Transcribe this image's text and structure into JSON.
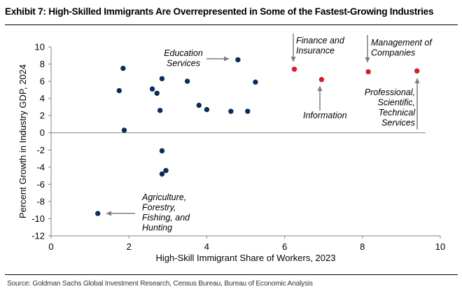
{
  "header": {
    "title": "Exhibit 7: High-Skilled Immigrants Are Overrepresented in Some of the Fastest-Growing Industries"
  },
  "footer": {
    "source": "Source: Goldman Sachs Global Investment Research, Census Bureau, Bureau of Economic Analysis"
  },
  "chart_data": {
    "type": "scatter",
    "title": "Exhibit 7: High-Skilled Immigrants Are Overrepresented in Some of the Fastest-Growing Industries",
    "xlabel": "High-Skill Immigrant Share of Workers, 2023",
    "ylabel": "Percent Growth in Industry GDP, 2024",
    "xlim": [
      0,
      10
    ],
    "ylim": [
      -12,
      10
    ],
    "xticks": [
      0,
      2,
      4,
      6,
      8,
      10
    ],
    "yticks": [
      -12,
      -10,
      -8,
      -6,
      -4,
      -2,
      0,
      2,
      4,
      6,
      8,
      10
    ],
    "grid": false,
    "legend": "none",
    "colors": {
      "other": "#0b2d5b",
      "highlighted": "#d21f2b",
      "axis": "#808080",
      "arrow": "#7f7f7f"
    },
    "series": [
      {
        "points": [
          {
            "x": 1.2,
            "y": -9.4
          },
          {
            "x": 1.75,
            "y": 4.9
          },
          {
            "x": 1.85,
            "y": 7.5
          },
          {
            "x": 1.88,
            "y": 0.3
          },
          {
            "x": 2.6,
            "y": 5.1
          },
          {
            "x": 2.72,
            "y": 4.6
          },
          {
            "x": 2.8,
            "y": 2.6
          },
          {
            "x": 2.85,
            "y": 6.3
          },
          {
            "x": 2.85,
            "y": -2.1
          },
          {
            "x": 2.85,
            "y": -4.8
          },
          {
            "x": 2.95,
            "y": -4.4
          },
          {
            "x": 3.5,
            "y": 6.0
          },
          {
            "x": 3.8,
            "y": 3.2
          },
          {
            "x": 4.0,
            "y": 2.7
          },
          {
            "x": 4.62,
            "y": 2.5
          },
          {
            "x": 4.8,
            "y": 8.5
          },
          {
            "x": 5.05,
            "y": 2.5
          },
          {
            "x": 5.25,
            "y": 5.9
          }
        ]
      },
      {
        "points": [
          {
            "x": 6.25,
            "y": 7.4
          },
          {
            "x": 6.95,
            "y": 6.2
          },
          {
            "x": 8.15,
            "y": 7.1
          },
          {
            "x": 9.4,
            "y": 7.2
          }
        ]
      }
    ],
    "annotations": [
      {
        "lines": [
          "Education",
          "Services"
        ],
        "x": 4.8,
        "y": 8.5
      },
      {
        "lines": [
          "Agriculture,",
          "Forestry,",
          "Fishing, and",
          "Hunting"
        ],
        "x": 1.2,
        "y": -9.4
      },
      {
        "lines": [
          "Finance and",
          "Insurance"
        ],
        "x": 6.25,
        "y": 7.4
      },
      {
        "lines": [
          "Information"
        ],
        "x": 6.95,
        "y": 6.2
      },
      {
        "lines": [
          "Management of",
          "Companies"
        ],
        "x": 8.15,
        "y": 7.1
      },
      {
        "lines": [
          "Professional,",
          "Scientific,",
          "Technical",
          "Services"
        ],
        "x": 9.4,
        "y": 7.2
      }
    ]
  }
}
